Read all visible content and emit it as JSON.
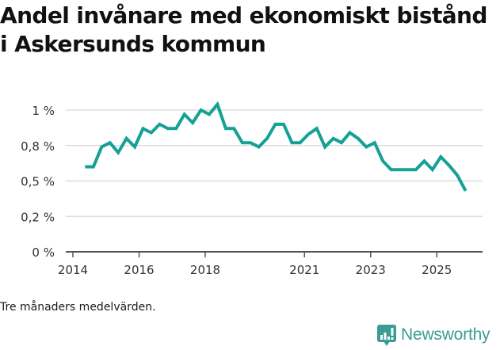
{
  "header": {
    "title": "Andel invånare med ekonomiskt bistånd i Askersunds kommun"
  },
  "footer": {
    "note": "Tre månaders medelvärden.",
    "brand": "Newsworthy",
    "brand_icon": "bar-chart-speech-bubble-icon"
  },
  "colors": {
    "line": "#15a196",
    "grid": "#dddddd",
    "axis": "#555555",
    "brand": "#3b9c95"
  },
  "chart_data": {
    "type": "line",
    "title": "Andel invånare med ekonomiskt bistånd i Askersunds kommun",
    "xlabel": "",
    "ylabel": "",
    "ylim": [
      0,
      1.0
    ],
    "grid": true,
    "legend": "none",
    "y_ticks": [
      {
        "value": 1.0,
        "label": "1 %"
      },
      {
        "value": 0.75,
        "label": "0,8 %"
      },
      {
        "value": 0.5,
        "label": "0,5 %"
      },
      {
        "value": 0.25,
        "label": "0,2 %"
      },
      {
        "value": 0,
        "label": "0 %"
      }
    ],
    "x_ticks": [
      {
        "value": 2014.0,
        "label": "2014"
      },
      {
        "value": 2016.0,
        "label": "2016"
      },
      {
        "value": 2018.0,
        "label": "2018"
      },
      {
        "value": 2021.0,
        "label": "2021"
      },
      {
        "value": 2023.0,
        "label": "2023"
      },
      {
        "value": 2025.0,
        "label": "2025"
      }
    ],
    "series": [
      {
        "name": "Andel invånare med ekonomiskt bistånd",
        "x": [
          2014.37,
          2014.62,
          2014.87,
          2015.12,
          2015.37,
          2015.62,
          2015.87,
          2016.12,
          2016.37,
          2016.62,
          2016.87,
          2017.12,
          2017.37,
          2017.62,
          2017.87,
          2018.12,
          2018.37,
          2018.62,
          2018.87,
          2019.12,
          2019.37,
          2019.62,
          2019.87,
          2020.12,
          2020.37,
          2020.62,
          2020.87,
          2021.12,
          2021.37,
          2021.62,
          2021.87,
          2022.12,
          2022.37,
          2022.62,
          2022.87,
          2023.12,
          2023.37,
          2023.62,
          2023.87,
          2024.12,
          2024.37,
          2024.62,
          2024.87,
          2025.12,
          2025.37,
          2025.62,
          2025.87
        ],
        "values": [
          0.6,
          0.6,
          0.74,
          0.77,
          0.7,
          0.8,
          0.74,
          0.87,
          0.84,
          0.9,
          0.87,
          0.87,
          0.97,
          0.91,
          1.0,
          0.97,
          1.04,
          0.87,
          0.87,
          0.77,
          0.77,
          0.74,
          0.8,
          0.9,
          0.9,
          0.77,
          0.77,
          0.83,
          0.87,
          0.74,
          0.8,
          0.77,
          0.84,
          0.8,
          0.74,
          0.77,
          0.64,
          0.58,
          0.58,
          0.58,
          0.58,
          0.64,
          0.58,
          0.67,
          0.61,
          0.54,
          0.43
        ]
      }
    ]
  }
}
